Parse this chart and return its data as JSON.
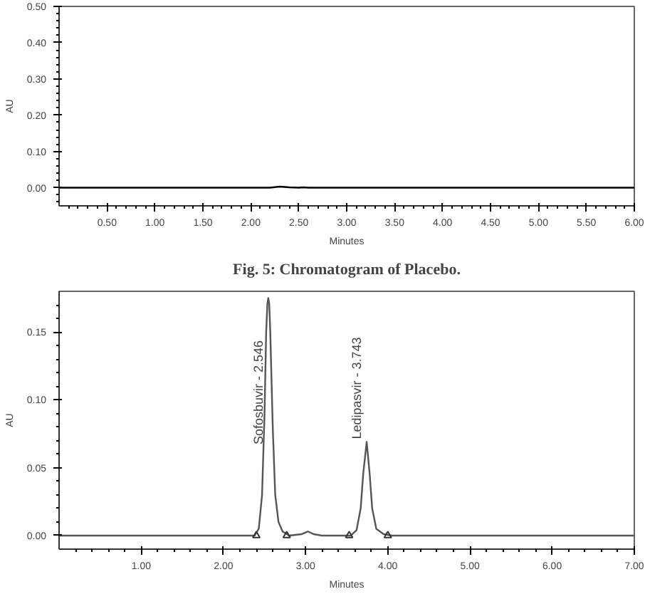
{
  "chart_data": [
    {
      "type": "line",
      "title": "Fig. 5: Chromatogram of Placebo.",
      "xlabel": "Minutes",
      "ylabel": "AU",
      "xlim": [
        0,
        6.0
      ],
      "ylim": [
        -0.05,
        0.5
      ],
      "xticks": [
        {
          "value": 0.5,
          "label": "0.50"
        },
        {
          "value": 1.0,
          "label": "1.00"
        },
        {
          "value": 1.5,
          "label": "1.50"
        },
        {
          "value": 2.0,
          "label": "2.00"
        },
        {
          "value": 2.5,
          "label": "2.50"
        },
        {
          "value": 3.0,
          "label": "3.00"
        },
        {
          "value": 3.5,
          "label": "3.50"
        },
        {
          "value": 4.0,
          "label": "4.00"
        },
        {
          "value": 4.5,
          "label": "4.50"
        },
        {
          "value": 5.0,
          "label": "5.00"
        },
        {
          "value": 5.5,
          "label": "5.50"
        },
        {
          "value": 6.0,
          "label": "6.00"
        },
        {
          "value": 0.1,
          "label": null
        },
        {
          "value": 0.2,
          "label": null
        },
        {
          "value": 0.3,
          "label": null
        },
        {
          "value": 0.4,
          "label": null
        },
        {
          "value": 0.6,
          "label": null
        },
        {
          "value": 0.7,
          "label": null
        },
        {
          "value": 0.8,
          "label": null
        },
        {
          "value": 0.9,
          "label": null
        },
        {
          "value": 1.1,
          "label": null
        },
        {
          "value": 1.2,
          "label": null
        },
        {
          "value": 1.3,
          "label": null
        },
        {
          "value": 1.4,
          "label": null
        },
        {
          "value": 1.6,
          "label": null
        },
        {
          "value": 1.7,
          "label": null
        },
        {
          "value": 1.8,
          "label": null
        },
        {
          "value": 1.9,
          "label": null
        },
        {
          "value": 2.1,
          "label": null
        },
        {
          "value": 2.2,
          "label": null
        },
        {
          "value": 2.3,
          "label": null
        },
        {
          "value": 2.4,
          "label": null
        },
        {
          "value": 2.6,
          "label": null
        },
        {
          "value": 2.7,
          "label": null
        },
        {
          "value": 2.8,
          "label": null
        },
        {
          "value": 2.9,
          "label": null
        },
        {
          "value": 3.1,
          "label": null
        },
        {
          "value": 3.2,
          "label": null
        },
        {
          "value": 3.3,
          "label": null
        },
        {
          "value": 3.4,
          "label": null
        },
        {
          "value": 3.6,
          "label": null
        },
        {
          "value": 3.7,
          "label": null
        },
        {
          "value": 3.8,
          "label": null
        },
        {
          "value": 3.9,
          "label": null
        },
        {
          "value": 4.1,
          "label": null
        },
        {
          "value": 4.2,
          "label": null
        },
        {
          "value": 4.3,
          "label": null
        },
        {
          "value": 4.4,
          "label": null
        },
        {
          "value": 4.6,
          "label": null
        },
        {
          "value": 4.7,
          "label": null
        },
        {
          "value": 4.8,
          "label": null
        },
        {
          "value": 4.9,
          "label": null
        },
        {
          "value": 5.1,
          "label": null
        },
        {
          "value": 5.2,
          "label": null
        },
        {
          "value": 5.3,
          "label": null
        },
        {
          "value": 5.4,
          "label": null
        },
        {
          "value": 5.6,
          "label": null
        },
        {
          "value": 5.7,
          "label": null
        },
        {
          "value": 5.8,
          "label": null
        },
        {
          "value": 5.9,
          "label": null
        }
      ],
      "yticks": [
        {
          "value": 0.0,
          "label": "0.00"
        },
        {
          "value": 0.1,
          "label": "0.10"
        },
        {
          "value": 0.2,
          "label": "0.20"
        },
        {
          "value": 0.3,
          "label": "0.30"
        },
        {
          "value": 0.4,
          "label": "0.40"
        },
        {
          "value": 0.5,
          "label": "0.50"
        },
        {
          "value": -0.04,
          "label": null
        },
        {
          "value": -0.02,
          "label": null
        },
        {
          "value": 0.02,
          "label": null
        },
        {
          "value": 0.04,
          "label": null
        },
        {
          "value": 0.06,
          "label": null
        },
        {
          "value": 0.08,
          "label": null
        },
        {
          "value": 0.12,
          "label": null
        },
        {
          "value": 0.14,
          "label": null
        },
        {
          "value": 0.16,
          "label": null
        },
        {
          "value": 0.18,
          "label": null
        },
        {
          "value": 0.22,
          "label": null
        },
        {
          "value": 0.24,
          "label": null
        },
        {
          "value": 0.26,
          "label": null
        },
        {
          "value": 0.28,
          "label": null
        },
        {
          "value": 0.32,
          "label": null
        },
        {
          "value": 0.34,
          "label": null
        },
        {
          "value": 0.36,
          "label": null
        },
        {
          "value": 0.38,
          "label": null
        },
        {
          "value": 0.42,
          "label": null
        },
        {
          "value": 0.44,
          "label": null
        },
        {
          "value": 0.46,
          "label": null
        },
        {
          "value": 0.48,
          "label": null
        }
      ],
      "series": [
        {
          "color": "#000000",
          "x": [
            0,
            2.2,
            2.3,
            2.4,
            2.5,
            2.55,
            2.6,
            6.0
          ],
          "values": [
            0,
            0,
            0.003,
            0.001,
            0,
            0.001,
            0,
            0
          ]
        }
      ]
    },
    {
      "type": "line",
      "xlabel": "Minutes",
      "ylabel": "AU",
      "xlim": [
        0,
        7.0
      ],
      "ylim": [
        -0.01,
        0.18
      ],
      "xticks": [
        {
          "value": 1.0,
          "label": "1.00"
        },
        {
          "value": 2.0,
          "label": "2.00"
        },
        {
          "value": 3.0,
          "label": "3.00"
        },
        {
          "value": 4.0,
          "label": "4.00"
        },
        {
          "value": 5.0,
          "label": "5.00"
        },
        {
          "value": 6.0,
          "label": "6.00"
        },
        {
          "value": 7.0,
          "label": "7.00"
        },
        {
          "value": 0.2,
          "label": null
        },
        {
          "value": 0.4,
          "label": null
        },
        {
          "value": 0.6,
          "label": null
        },
        {
          "value": 0.8,
          "label": null
        },
        {
          "value": 1.2,
          "label": null
        },
        {
          "value": 1.4,
          "label": null
        },
        {
          "value": 1.6,
          "label": null
        },
        {
          "value": 1.8,
          "label": null
        },
        {
          "value": 2.2,
          "label": null
        },
        {
          "value": 2.4,
          "label": null
        },
        {
          "value": 2.6,
          "label": null
        },
        {
          "value": 2.8,
          "label": null
        },
        {
          "value": 3.2,
          "label": null
        },
        {
          "value": 3.4,
          "label": null
        },
        {
          "value": 3.6,
          "label": null
        },
        {
          "value": 3.8,
          "label": null
        },
        {
          "value": 4.2,
          "label": null
        },
        {
          "value": 4.4,
          "label": null
        },
        {
          "value": 4.6,
          "label": null
        },
        {
          "value": 4.8,
          "label": null
        },
        {
          "value": 5.2,
          "label": null
        },
        {
          "value": 5.4,
          "label": null
        },
        {
          "value": 5.6,
          "label": null
        },
        {
          "value": 5.8,
          "label": null
        },
        {
          "value": 6.2,
          "label": null
        },
        {
          "value": 6.4,
          "label": null
        },
        {
          "value": 6.6,
          "label": null
        },
        {
          "value": 6.8,
          "label": null
        }
      ],
      "yticks": [
        {
          "value": 0.0,
          "label": "0.00"
        },
        {
          "value": 0.05,
          "label": "0.05"
        },
        {
          "value": 0.1,
          "label": "0.10"
        },
        {
          "value": 0.15,
          "label": "0.15"
        },
        {
          "value": 0.01,
          "label": null
        },
        {
          "value": 0.02,
          "label": null
        },
        {
          "value": 0.03,
          "label": null
        },
        {
          "value": 0.04,
          "label": null
        },
        {
          "value": 0.06,
          "label": null
        },
        {
          "value": 0.07,
          "label": null
        },
        {
          "value": 0.08,
          "label": null
        },
        {
          "value": 0.09,
          "label": null
        },
        {
          "value": 0.11,
          "label": null
        },
        {
          "value": 0.12,
          "label": null
        },
        {
          "value": 0.13,
          "label": null
        },
        {
          "value": 0.14,
          "label": null
        },
        {
          "value": 0.16,
          "label": null
        },
        {
          "value": 0.17,
          "label": null
        }
      ],
      "annotations": [
        {
          "text": "Sofosbuvir - 2.546",
          "x": 2.546,
          "y": 0.065
        },
        {
          "text": "Ledipasvir - 3.743",
          "x": 3.743,
          "y": 0.069
        }
      ],
      "series": [
        {
          "color": "#555555",
          "x": [
            0,
            2.38,
            2.43,
            2.47,
            2.5,
            2.52,
            2.535,
            2.546,
            2.557,
            2.57,
            2.6,
            2.63,
            2.67,
            2.72,
            2.8,
            2.95,
            3.03,
            3.1,
            3.2,
            3.55,
            3.62,
            3.67,
            3.7,
            3.743,
            3.78,
            3.81,
            3.86,
            3.95,
            4.05,
            7.0
          ],
          "values": [
            0,
            0,
            0.005,
            0.03,
            0.09,
            0.15,
            0.171,
            0.175,
            0.171,
            0.15,
            0.08,
            0.03,
            0.01,
            0.003,
            0,
            0.001,
            0.003,
            0.001,
            0,
            0,
            0.004,
            0.02,
            0.045,
            0.069,
            0.045,
            0.02,
            0.005,
            0.001,
            0,
            0
          ]
        },
        {
          "type": "scatter",
          "marker": "triangle",
          "color": "#333333",
          "x": [
            2.4,
            2.77,
            3.53,
            4.0
          ],
          "values": [
            0,
            0,
            0,
            0
          ]
        }
      ]
    }
  ]
}
